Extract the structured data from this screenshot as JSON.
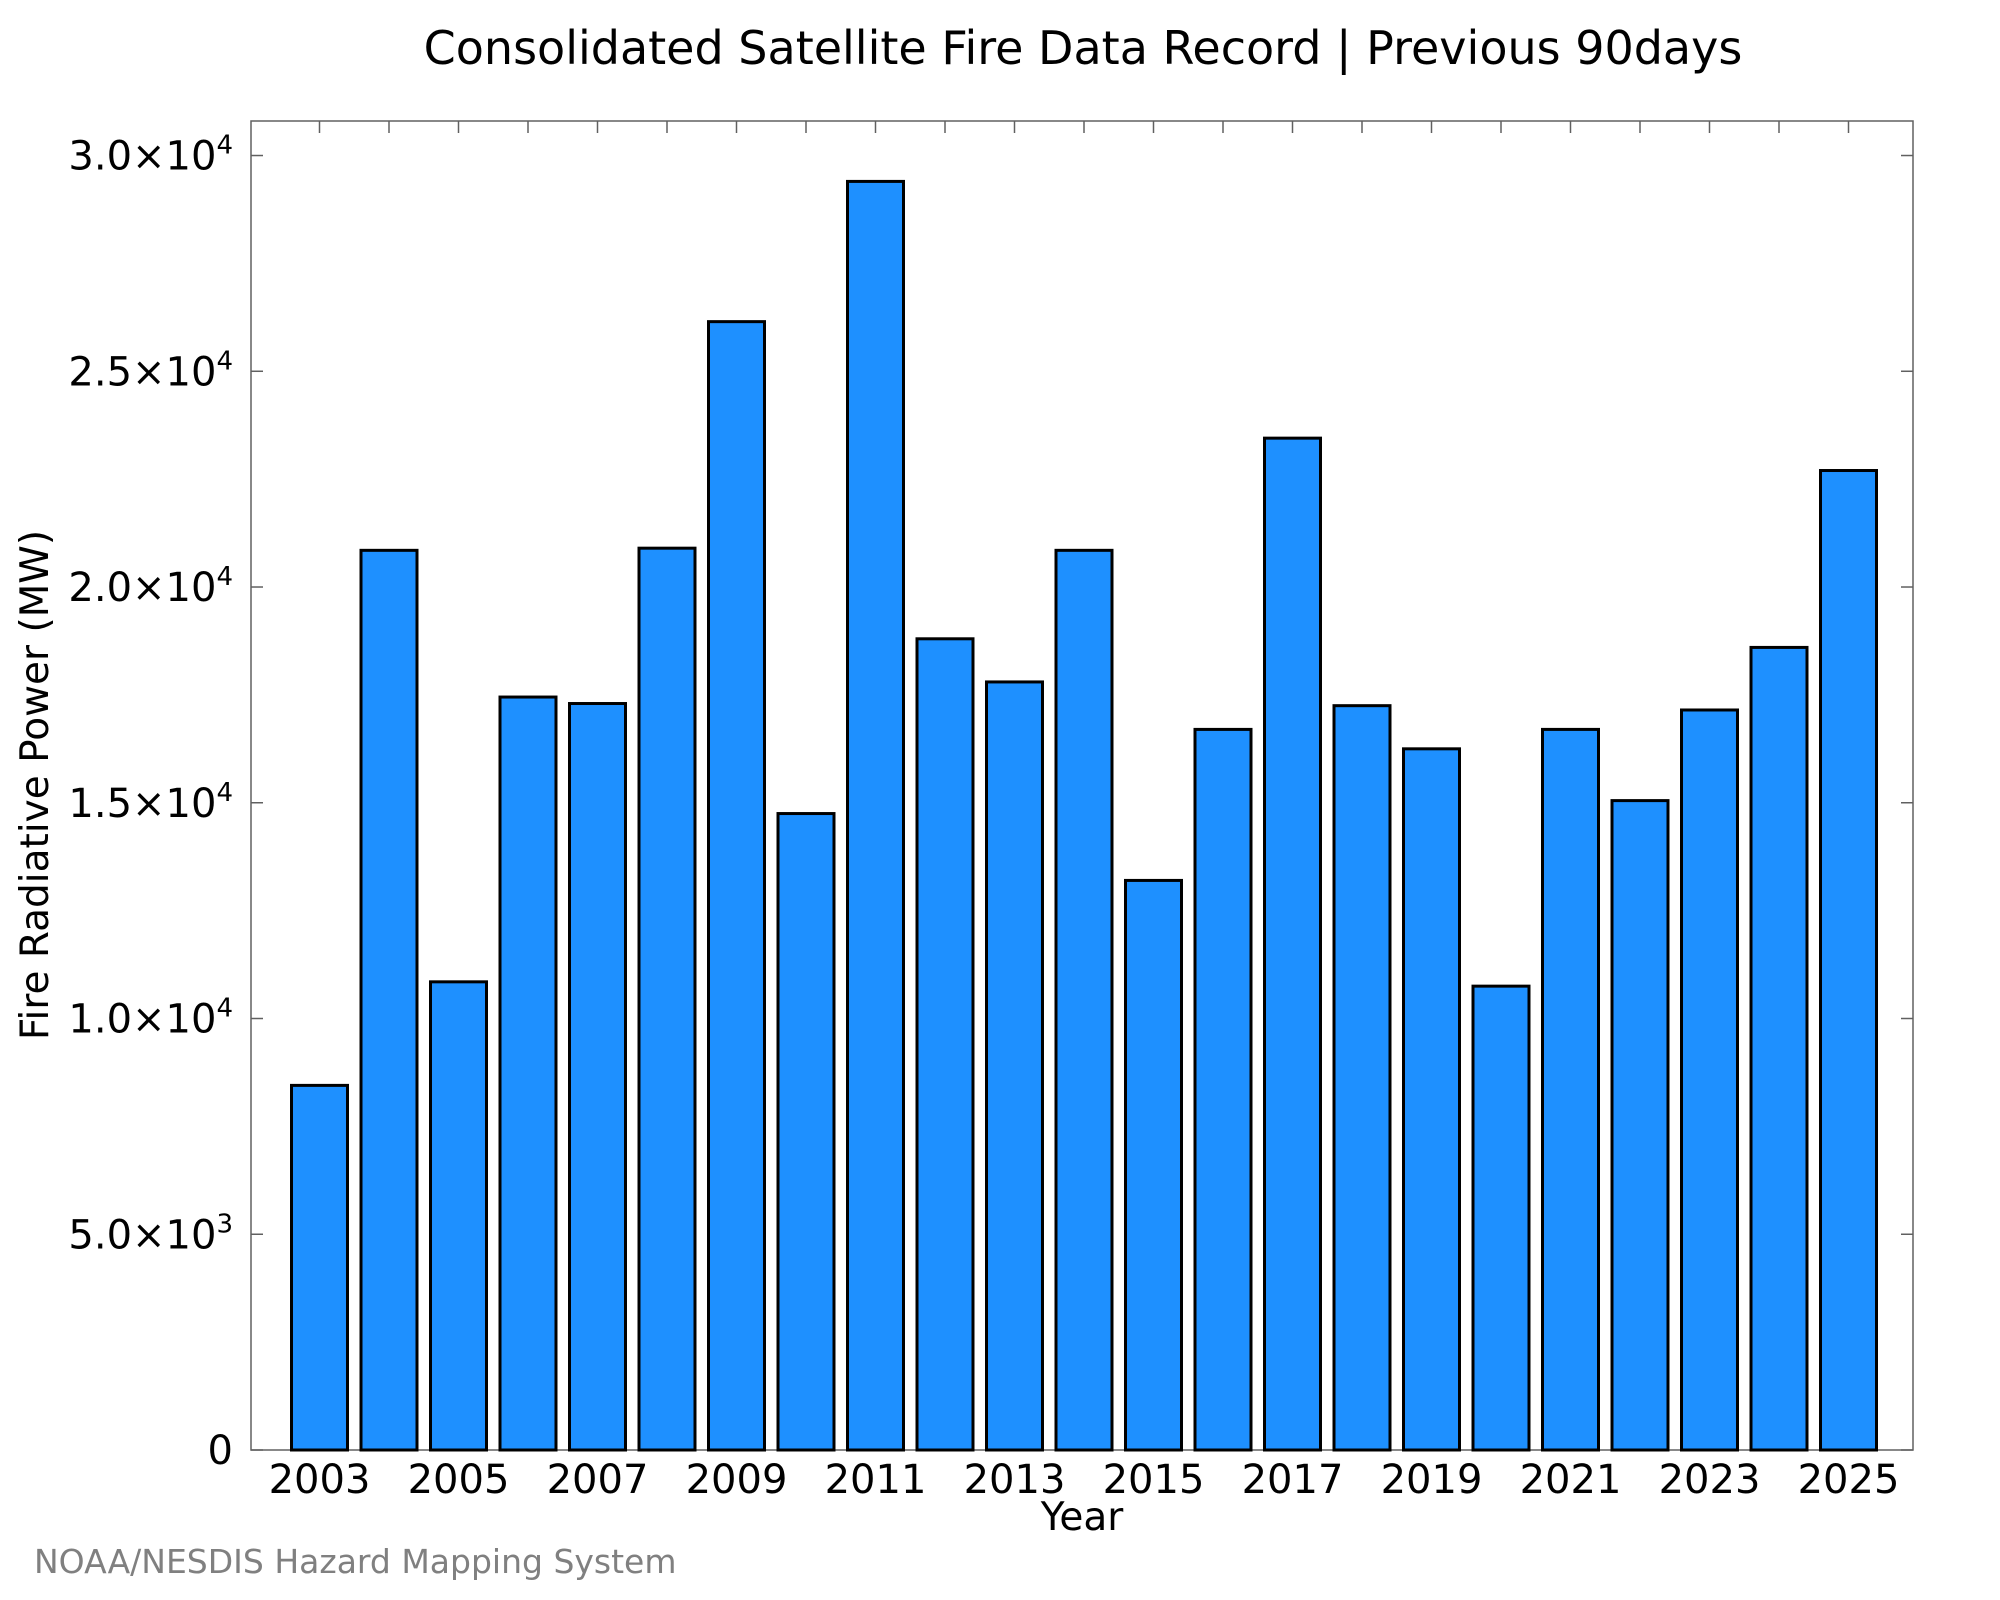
{
  "chart_data": {
    "type": "bar",
    "title": "Consolidated Satellite Fire Data Record | Previous 90days",
    "xlabel": "Year",
    "ylabel": "Fire Radiative Power (MW)",
    "categories": [
      "2003",
      "2004",
      "2005",
      "2006",
      "2007",
      "2008",
      "2009",
      "2010",
      "2011",
      "2012",
      "2013",
      "2014",
      "2015",
      "2016",
      "2017",
      "2018",
      "2019",
      "2020",
      "2021",
      "2022",
      "2023",
      "2024",
      "2025"
    ],
    "values": [
      8450,
      20850,
      10850,
      17450,
      17300,
      20900,
      26150,
      14750,
      29400,
      18800,
      17800,
      20850,
      13200,
      16700,
      23450,
      17250,
      16250,
      10750,
      16700,
      15050,
      17150,
      18600,
      22700
    ],
    "xtick_labels": [
      "2003",
      "2005",
      "2007",
      "2009",
      "2011",
      "2013",
      "2015",
      "2017",
      "2019",
      "2021",
      "2023",
      "2025"
    ],
    "ylim": [
      0,
      30800
    ],
    "yticks": [
      {
        "value": 0,
        "mantissa": "0",
        "exponent": ""
      },
      {
        "value": 5000,
        "mantissa": "5.0×10",
        "exponent": "3"
      },
      {
        "value": 10000,
        "mantissa": "1.0×10",
        "exponent": "4"
      },
      {
        "value": 15000,
        "mantissa": "1.5×10",
        "exponent": "4"
      },
      {
        "value": 20000,
        "mantissa": "2.0×10",
        "exponent": "4"
      },
      {
        "value": 25000,
        "mantissa": "2.5×10",
        "exponent": "4"
      },
      {
        "value": 30000,
        "mantissa": "3.0×10",
        "exponent": "4"
      }
    ],
    "bar_color": "#1e90ff",
    "edge_color": "#000000",
    "grid": false,
    "legend": "none"
  },
  "credit": "NOAA/NESDIS Hazard Mapping System"
}
